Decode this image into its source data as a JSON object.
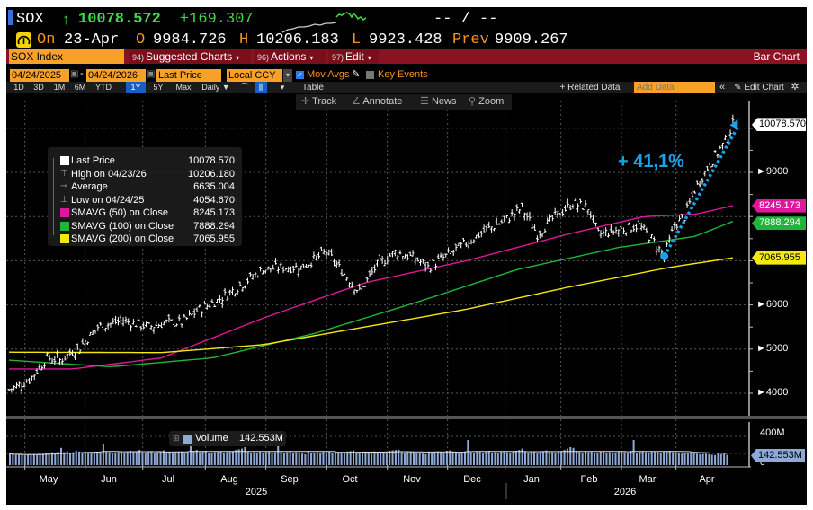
{
  "header": {
    "ticker": "SOX",
    "arrow": "↑",
    "last": "10078.572",
    "change": "+169.307",
    "bid_ask": "-- / --",
    "on_label": "On",
    "date": "23-Apr",
    "open_label": "O",
    "open": "9984.726",
    "high_label": "H",
    "high": "10206.183",
    "low_label": "L",
    "low": "9923.428",
    "prev_label": "Prev",
    "prev": "9909.267"
  },
  "menubar": {
    "security": "SOX Index",
    "suggested_num": "94)",
    "suggested": "Suggested Charts",
    "actions_num": "96)",
    "actions": "Actions",
    "edit_num": "97)",
    "edit": "Edit",
    "chart_type": "Bar Chart"
  },
  "controls": {
    "start_date": "04/24/2025",
    "dash": "-",
    "end_date": "04/24/2026",
    "field": "Last Price",
    "currency": "Local CCY",
    "mov_avgs": "Mov Avgs",
    "key_events": "Key Events",
    "periods": [
      "1D",
      "3D",
      "1M",
      "6M",
      "YTD",
      "1Y",
      "5Y",
      "Max"
    ],
    "active_period": "1Y",
    "frequency": "Daily ▼",
    "table": "Table",
    "related_data": "+ Related Data",
    "add_data_placeholder": "Add Data",
    "edit_chart": "Edit Chart"
  },
  "tools": {
    "track": "Track",
    "annotate": "Annotate",
    "news": "News",
    "zoom": "Zoom"
  },
  "legend": [
    {
      "label": "Last Price",
      "value": "10078.570",
      "color": "#ffffff",
      "kind": "swatch"
    },
    {
      "label": "High on 04/23/26",
      "value": "10206.180",
      "color": "#aaaaaa",
      "kind": "high"
    },
    {
      "label": "Average",
      "value": "6635.004",
      "color": "#aaaaaa",
      "kind": "avg"
    },
    {
      "label": "Low on 04/24/25",
      "value": "4054.670",
      "color": "#aaaaaa",
      "kind": "low"
    },
    {
      "label": "SMAVG (50)  on Close",
      "value": "8245.173",
      "color": "#e0169a",
      "kind": "swatch"
    },
    {
      "label": "SMAVG (100)  on Close",
      "value": "7888.294",
      "color": "#1fb53a",
      "kind": "swatch"
    },
    {
      "label": "SMAVG (200)  on Close",
      "value": "7065.955",
      "color": "#f5e80f",
      "kind": "swatch"
    }
  ],
  "annotation": {
    "text": "+ 41,1%",
    "color": "#1ba3e8"
  },
  "volume": {
    "label": "Volume",
    "value": "142.553M",
    "axis_top": "400M",
    "axis_zero": "0",
    "color": "#8fa9d6"
  },
  "chart_data": {
    "type": "bar",
    "title": "SOX Index",
    "ylim": [
      3900,
      10400
    ],
    "y_ticks": [
      "4000",
      "5000",
      "6000",
      "9000"
    ],
    "price_tags": [
      {
        "label": "10078.570",
        "value": 10078.57,
        "bg": "#ffffff",
        "fg": "#000000"
      },
      {
        "label": "8245.173",
        "value": 8245.173,
        "bg": "#e0169a",
        "fg": "#ffffff"
      },
      {
        "label": "7888.294",
        "value": 7888.294,
        "bg": "#1fb53a",
        "fg": "#ffffff"
      },
      {
        "label": "7065.955",
        "value": 7065.955,
        "bg": "#f5e80f",
        "fg": "#000000"
      }
    ],
    "x_months": [
      "May",
      "Jun",
      "Jul",
      "Aug",
      "Sep",
      "Oct",
      "Nov",
      "Dec",
      "Jan",
      "Feb",
      "Mar",
      "Apr"
    ],
    "x_years": [
      "2025",
      "2026"
    ],
    "price_keypoints": [
      [
        0,
        4080
      ],
      [
        8,
        4300
      ],
      [
        15,
        4800
      ],
      [
        20,
        4750
      ],
      [
        28,
        5050
      ],
      [
        35,
        5500
      ],
      [
        45,
        5650
      ],
      [
        55,
        5500
      ],
      [
        62,
        5600
      ],
      [
        68,
        5600
      ],
      [
        75,
        5900
      ],
      [
        82,
        6100
      ],
      [
        90,
        6400
      ],
      [
        100,
        6800
      ],
      [
        108,
        6850
      ],
      [
        115,
        6850
      ],
      [
        125,
        7200
      ],
      [
        132,
        6700
      ],
      [
        138,
        6300
      ],
      [
        145,
        6900
      ],
      [
        152,
        7200
      ],
      [
        160,
        7050
      ],
      [
        165,
        6850
      ],
      [
        172,
        7100
      ],
      [
        180,
        7400
      ],
      [
        188,
        7700
      ],
      [
        195,
        7900
      ],
      [
        202,
        8200
      ],
      [
        208,
        7600
      ],
      [
        215,
        8000
      ],
      [
        222,
        8300
      ],
      [
        228,
        8200
      ],
      [
        232,
        7600
      ],
      [
        240,
        7700
      ],
      [
        248,
        7800
      ],
      [
        253,
        7500
      ],
      [
        258,
        7100
      ],
      [
        262,
        7800
      ],
      [
        266,
        8000
      ],
      [
        270,
        8600
      ],
      [
        276,
        9200
      ],
      [
        282,
        9700
      ],
      [
        285,
        10078
      ]
    ],
    "series": [
      {
        "name": "SMAVG (50)",
        "color": "#e0169a",
        "values": [
          [
            0,
            4550
          ],
          [
            25,
            4550
          ],
          [
            60,
            4800
          ],
          [
            100,
            5700
          ],
          [
            140,
            6500
          ],
          [
            180,
            7000
          ],
          [
            220,
            7600
          ],
          [
            250,
            8000
          ],
          [
            270,
            8050
          ],
          [
            285,
            8245
          ]
        ]
      },
      {
        "name": "SMAVG (100)",
        "color": "#1fb53a",
        "values": [
          [
            0,
            4750
          ],
          [
            40,
            4600
          ],
          [
            80,
            4800
          ],
          [
            120,
            5350
          ],
          [
            160,
            6050
          ],
          [
            200,
            6800
          ],
          [
            240,
            7300
          ],
          [
            270,
            7550
          ],
          [
            285,
            7888
          ]
        ]
      },
      {
        "name": "SMAVG (200)",
        "color": "#f5e80f",
        "values": [
          [
            0,
            4930
          ],
          [
            60,
            4920
          ],
          [
            100,
            5100
          ],
          [
            140,
            5500
          ],
          [
            180,
            5900
          ],
          [
            220,
            6400
          ],
          [
            260,
            6850
          ],
          [
            285,
            7066
          ]
        ]
      }
    ],
    "trend_arrow": {
      "from": [
        258,
        7100
      ],
      "to": [
        287,
        10200
      ]
    },
    "volume_values_millions": [
      160,
      150,
      140,
      155,
      145,
      135,
      150,
      140,
      145,
      150,
      160,
      150,
      165,
      170,
      180,
      175,
      185,
      240,
      180,
      190,
      175,
      180,
      200,
      190,
      180,
      185,
      175,
      170,
      180,
      185,
      175,
      300,
      185,
      180,
      175,
      170,
      180,
      185,
      175,
      180,
      200,
      185,
      190,
      210,
      175,
      170,
      180,
      185,
      175,
      180,
      190,
      205,
      170,
      180,
      175,
      180,
      185,
      190,
      175,
      180,
      380,
      200,
      210,
      180,
      190,
      200,
      175,
      170,
      180,
      185,
      190,
      175,
      180,
      185,
      195,
      210,
      220,
      230,
      250,
      190,
      175,
      180,
      170,
      185,
      175,
      180,
      190,
      175,
      180,
      460,
      185,
      175,
      180,
      190,
      175,
      180,
      170,
      160,
      150,
      200,
      170,
      175,
      180,
      175,
      185,
      170,
      190,
      175,
      180,
      185,
      175,
      180,
      190,
      195,
      205,
      175,
      180,
      170,
      185,
      180,
      175,
      190,
      170,
      185,
      180,
      175,
      200,
      205,
      210,
      215,
      180,
      175,
      190,
      185,
      180,
      175,
      170,
      160,
      150,
      185,
      175,
      180,
      190,
      185,
      175,
      200,
      205,
      190,
      185,
      175,
      180,
      190,
      350,
      180,
      175,
      190,
      185,
      175,
      190,
      200,
      170,
      180,
      175,
      190,
      185,
      180,
      175,
      190,
      200,
      210,
      230,
      190,
      175,
      180,
      185,
      175,
      190,
      195,
      205,
      185,
      180,
      175,
      190,
      185,
      210,
      230,
      250,
      240,
      200,
      185,
      175,
      190,
      180,
      185,
      175,
      170,
      190,
      185,
      175,
      180,
      175,
      170,
      190,
      185,
      180,
      175,
      200,
      350,
      175,
      185,
      190,
      180,
      175,
      190,
      185,
      180,
      175,
      190,
      185,
      200,
      180,
      175,
      170,
      160,
      165,
      170,
      175,
      180,
      160,
      150,
      155,
      160,
      150,
      145,
      140,
      160,
      150,
      155,
      142
    ]
  }
}
